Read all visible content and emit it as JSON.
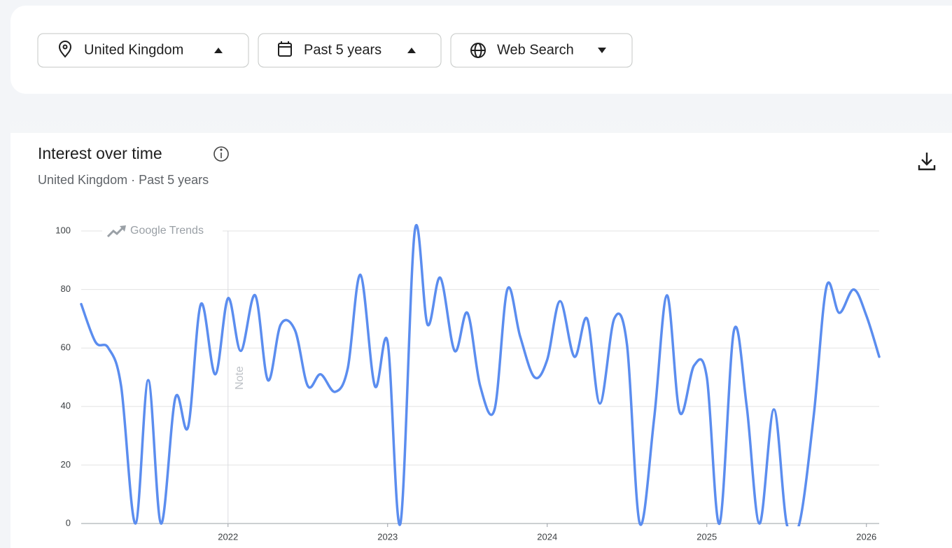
{
  "filters": [
    "United Kingdom",
    "Past 5 years",
    "Web Search"
  ],
  "chart_data": {
    "type": "line",
    "title": "Interest over time",
    "subtitle": "United Kingdom · Past 5 years",
    "watermark": "Google Trends",
    "annotations": [
      {
        "text": "Note",
        "x": 2022
      }
    ],
    "x": [
      2021.08,
      2021.17,
      2021.25,
      2021.33,
      2021.42,
      2021.5,
      2021.58,
      2021.67,
      2021.75,
      2021.83,
      2021.92,
      2022.0,
      2022.08,
      2022.17,
      2022.25,
      2022.33,
      2022.42,
      2022.5,
      2022.58,
      2022.67,
      2022.75,
      2022.83,
      2022.92,
      2023.0,
      2023.08,
      2023.17,
      2023.25,
      2023.33,
      2023.42,
      2023.5,
      2023.58,
      2023.67,
      2023.75,
      2023.83,
      2023.92,
      2024.0,
      2024.08,
      2024.17,
      2024.25,
      2024.33,
      2024.42,
      2024.5,
      2024.58,
      2024.67,
      2024.75,
      2024.83,
      2024.92,
      2025.0,
      2025.08,
      2025.17,
      2025.25,
      2025.33,
      2025.42,
      2025.5,
      2025.58,
      2025.67,
      2025.75,
      2025.83,
      2025.92,
      2026.0,
      2026.08
    ],
    "series": [
      {
        "name": "Interest",
        "color": "#5b8def",
        "values": [
          75,
          62,
          60,
          47,
          0,
          49,
          0,
          43,
          33,
          75,
          51,
          77,
          59,
          78,
          49,
          68,
          66,
          47,
          51,
          45,
          53,
          85,
          47,
          62,
          0,
          100,
          68,
          84,
          59,
          72,
          47,
          39,
          80,
          64,
          50,
          56,
          76,
          57,
          70,
          41,
          70,
          61,
          0,
          36,
          78,
          38,
          54,
          50,
          0,
          66,
          40,
          0,
          39,
          0,
          0,
          37,
          81,
          72,
          80,
          71,
          57
        ]
      }
    ],
    "xlim": [
      2021.08,
      2026.08
    ],
    "xticks": [
      2022,
      2023,
      2024,
      2025,
      2026
    ],
    "ylim": [
      0,
      100
    ],
    "yticks": [
      0,
      20,
      40,
      60,
      80,
      100
    ],
    "grid": true
  }
}
